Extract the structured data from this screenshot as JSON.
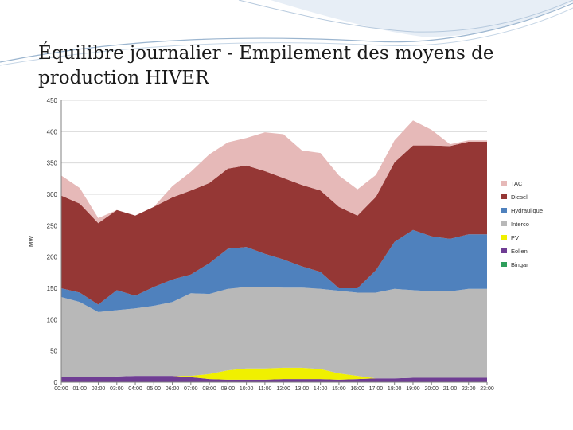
{
  "slide": {
    "title": "Équilibre journalier - Empilement des moyens de production HIVER"
  },
  "chart_data": {
    "type": "area",
    "stacked": true,
    "ylabel": "MW",
    "ylim": [
      0,
      450
    ],
    "yticks": [
      0,
      50,
      100,
      150,
      200,
      250,
      300,
      350,
      400,
      450
    ],
    "grid": true,
    "legend_position": "right",
    "categories": [
      "00:00",
      "01:00",
      "02:00",
      "03:00",
      "04:00",
      "05:00",
      "06:00",
      "07:00",
      "08:00",
      "09:00",
      "10:00",
      "11:00",
      "12:00",
      "13:00",
      "14:00",
      "15:00",
      "16:00",
      "17:00",
      "18:00",
      "19:00",
      "20:00",
      "21:00",
      "22:00",
      "23:00"
    ],
    "x_tick_labels": [
      "00:00",
      "01:00",
      "02:00",
      "03:00",
      "04:00",
      "05:00",
      "06:00",
      "07:00",
      "08:00",
      "09:00",
      "10:00",
      "11:00",
      "12:00",
      "13:00",
      "14:00",
      "15:00",
      "16:00",
      "17:00",
      "18:00",
      "19:00",
      "20:00",
      "21:00",
      "22:00",
      "23:00"
    ],
    "series": [
      {
        "name": "Bingar",
        "color": "#2e9e5b",
        "values": [
          0,
          0,
          0,
          0,
          0,
          0,
          0,
          0,
          0,
          0,
          0,
          0,
          0,
          0,
          0,
          0,
          0,
          0,
          0,
          0,
          0,
          0,
          0,
          0
        ]
      },
      {
        "name": "Eolien",
        "color": "#6f3d94",
        "values": [
          8,
          8,
          8,
          9,
          10,
          10,
          10,
          8,
          5,
          4,
          4,
          4,
          5,
          5,
          5,
          4,
          5,
          6,
          6,
          7,
          7,
          7,
          7,
          7
        ]
      },
      {
        "name": "PV",
        "color": "#f0f000",
        "values": [
          0,
          0,
          0,
          0,
          0,
          0,
          0,
          2,
          8,
          15,
          18,
          18,
          18,
          18,
          16,
          10,
          5,
          0,
          0,
          0,
          0,
          0,
          0,
          0
        ]
      },
      {
        "name": "Interco",
        "color": "#b8b8b8",
        "values": [
          128,
          120,
          104,
          106,
          108,
          112,
          118,
          132,
          128,
          130,
          130,
          130,
          128,
          128,
          128,
          132,
          133,
          137,
          143,
          140,
          138,
          138,
          142,
          142
        ]
      },
      {
        "name": "Hydraulique",
        "color": "#4f81bd",
        "values": [
          14,
          15,
          12,
          32,
          20,
          30,
          36,
          30,
          49,
          64,
          64,
          53,
          45,
          34,
          27,
          4,
          7,
          36,
          75,
          96,
          88,
          84,
          87,
          87
        ]
      },
      {
        "name": "Diesel",
        "color": "#953735",
        "values": [
          148,
          142,
          130,
          128,
          128,
          128,
          131,
          134,
          128,
          128,
          130,
          132,
          130,
          130,
          130,
          130,
          116,
          117,
          127,
          135,
          145,
          148,
          148,
          148
        ]
      },
      {
        "name": "TAC",
        "color": "#e6b9b8",
        "values": [
          32,
          25,
          8,
          0,
          0,
          0,
          18,
          30,
          46,
          42,
          44,
          62,
          70,
          55,
          60,
          50,
          42,
          35,
          35,
          40,
          25,
          3,
          2,
          2
        ]
      }
    ],
    "legend": [
      "TAC",
      "Diesel",
      "Hydraulique",
      "Interco",
      "PV",
      "Eolien",
      "Bingar"
    ]
  }
}
